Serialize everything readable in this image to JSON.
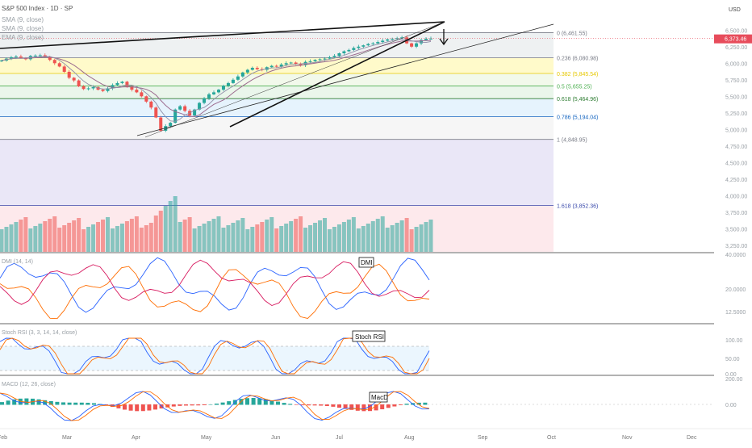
{
  "header": {
    "symbol_line": "S&P 500 Index · 1D · SP",
    "sma_1": "SMA (9, close)",
    "sma_2": "SMA (9, close)",
    "ema": "EMA (9, close)",
    "currency": "USD"
  },
  "price_axis": {
    "ticks": [
      "6,500.00",
      "6,250.00",
      "6,000.00",
      "5,750.00",
      "5,500.00",
      "5,250.00",
      "5,000.00",
      "4,750.00",
      "4,500.00",
      "4,250.00",
      "4,000.00",
      "3,750.00",
      "3,500.00",
      "3,250.00"
    ],
    "last_price": "6,373.46",
    "last_price_color": "#e74c5b"
  },
  "time_axis": {
    "labels": [
      "Feb",
      "Mar",
      "Apr",
      "May",
      "Jun",
      "Jul",
      "Aug",
      "Sep",
      "Oct",
      "Nov",
      "Dec"
    ]
  },
  "fib_levels": [
    {
      "ratio": "0",
      "label": "0 (6,461.55)",
      "color": "#787b86",
      "value": 6461.55
    },
    {
      "ratio": "0.236",
      "label": "0.236 (6,080.98)",
      "color": "#787b86",
      "value": 6080.98
    },
    {
      "ratio": "0.382",
      "label": "0.382 (5,845.54)",
      "color": "#e6c800",
      "value": 5845.54
    },
    {
      "ratio": "0.5",
      "label": "0.5 (5,655.25)",
      "color": "#4caf50",
      "value": 5655.25
    },
    {
      "ratio": "0.618",
      "label": "0.618 (5,464.96)",
      "color": "#2e7d32",
      "value": 5464.96
    },
    {
      "ratio": "0.786",
      "label": "0.786 (5,194.04)",
      "color": "#1565c0",
      "value": 5194.04
    },
    {
      "ratio": "1",
      "label": "1 (4,848.95)",
      "color": "#787b86",
      "value": 4848.95
    },
    {
      "ratio": "1.618",
      "label": "1.618 (3,852.36)",
      "color": "#3949ab",
      "value": 3852.36
    }
  ],
  "dmi": {
    "title": "DMI (14, 14)",
    "tag": "DMI",
    "ticks": [
      "40.0000",
      "20.0000",
      "12.5000"
    ]
  },
  "stoch": {
    "title": "Stoch RSI (3, 3, 14, 14, close)",
    "tag": "Stoch RSI",
    "ticks": [
      "100.00",
      "50.00",
      "0.00"
    ]
  },
  "macd": {
    "title": "MACD (12, 26, close)",
    "tag": "MacD",
    "ticks": [
      "200.00",
      "0.00"
    ]
  },
  "chart_data": {
    "type": "candlestick",
    "title": "S&P 500 Index · 1D · SP",
    "y_range": [
      3250,
      6600
    ],
    "x_labels": [
      "Feb",
      "Mar",
      "Apr",
      "May",
      "Jun",
      "Jul",
      "Aug",
      "Sep",
      "Oct",
      "Nov",
      "Dec"
    ],
    "close_series_approx": [
      6040,
      6070,
      6090,
      6100,
      6080,
      6060,
      6110,
      6115,
      6120,
      6100,
      6050,
      6000,
      5950,
      5870,
      5780,
      5740,
      5650,
      5610,
      5620,
      5640,
      5600,
      5580,
      5620,
      5670,
      5700,
      5720,
      5650,
      5600,
      5560,
      5500,
      5420,
      5330,
      5180,
      4980,
      5050,
      5100,
      5300,
      5350,
      5280,
      5210,
      5300,
      5400,
      5470,
      5530,
      5560,
      5600,
      5660,
      5700,
      5750,
      5800,
      5860,
      5900,
      5930,
      5910,
      5900,
      5940,
      5960,
      5950,
      5980,
      6000,
      6010,
      5990,
      5970,
      6020,
      6030,
      6050,
      6060,
      6070,
      6090,
      6110,
      6150,
      6180,
      6200,
      6230,
      6250,
      6270,
      6290,
      6300,
      6320,
      6340,
      6360,
      6370,
      6380,
      6390,
      6300,
      6250,
      6300,
      6350,
      6370,
      6373
    ],
    "series": [
      {
        "name": "SMA (9, close)",
        "values": []
      },
      {
        "name": "EMA (9, close)",
        "values": []
      }
    ]
  }
}
